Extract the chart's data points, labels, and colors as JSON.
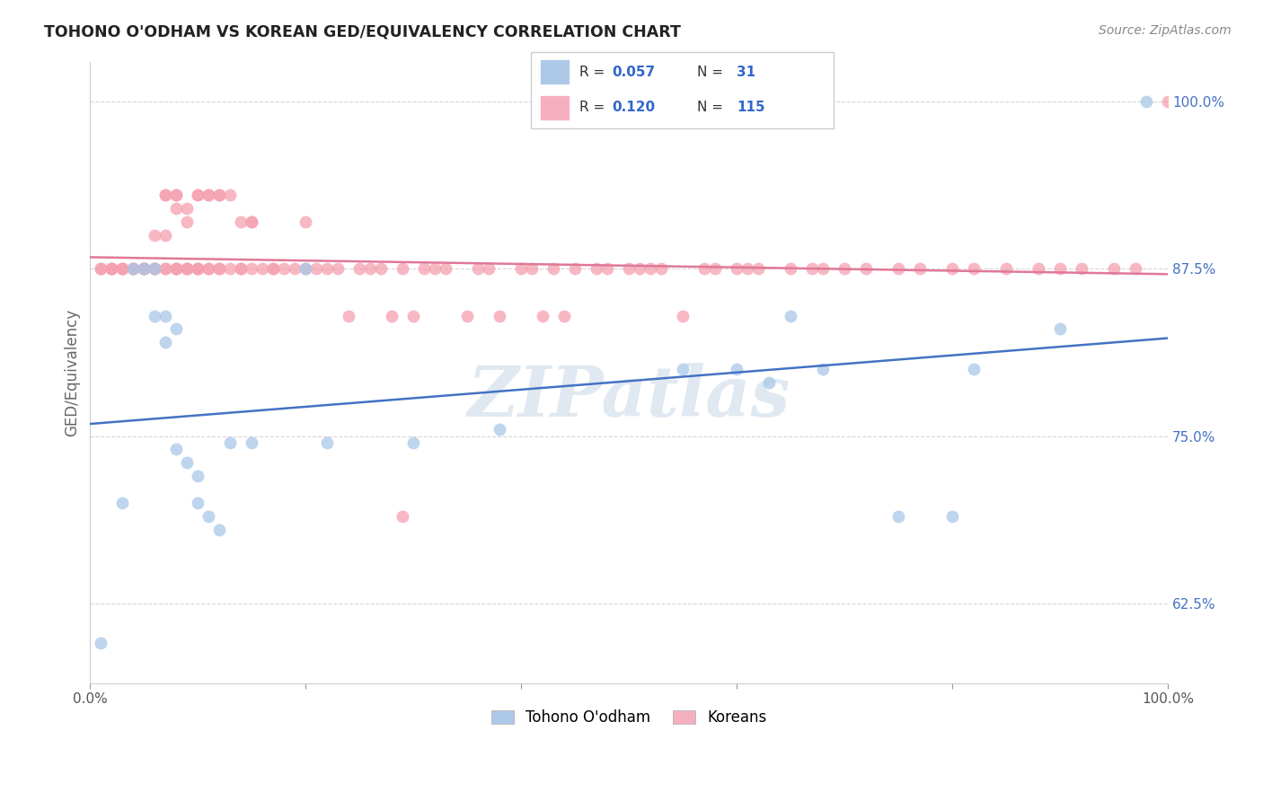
{
  "title": "TOHONO O'ODHAM VS KOREAN GED/EQUIVALENCY CORRELATION CHART",
  "source": "Source: ZipAtlas.com",
  "ylabel": "GED/Equivalency",
  "xlim": [
    0.0,
    1.0
  ],
  "ylim": [
    0.565,
    1.03
  ],
  "yticks": [
    0.625,
    0.75,
    0.875,
    1.0
  ],
  "ytick_labels": [
    "62.5%",
    "75.0%",
    "87.5%",
    "100.0%"
  ],
  "blue_scatter_x": [
    0.01,
    0.03,
    0.04,
    0.05,
    0.06,
    0.06,
    0.07,
    0.07,
    0.08,
    0.08,
    0.09,
    0.1,
    0.1,
    0.11,
    0.12,
    0.13,
    0.15,
    0.2,
    0.22,
    0.3,
    0.38,
    0.55,
    0.6,
    0.63,
    0.65,
    0.68,
    0.75,
    0.8,
    0.82,
    0.9,
    0.98
  ],
  "blue_scatter_y": [
    0.595,
    0.7,
    0.875,
    0.875,
    0.875,
    0.84,
    0.84,
    0.82,
    0.83,
    0.74,
    0.73,
    0.72,
    0.7,
    0.69,
    0.68,
    0.745,
    0.745,
    0.875,
    0.745,
    0.745,
    0.755,
    0.8,
    0.8,
    0.79,
    0.84,
    0.8,
    0.69,
    0.69,
    0.8,
    0.83,
    1.0
  ],
  "pink_scatter_x": [
    0.01,
    0.01,
    0.02,
    0.02,
    0.02,
    0.03,
    0.03,
    0.03,
    0.04,
    0.04,
    0.04,
    0.05,
    0.05,
    0.05,
    0.05,
    0.06,
    0.06,
    0.06,
    0.06,
    0.07,
    0.07,
    0.07,
    0.07,
    0.07,
    0.08,
    0.08,
    0.08,
    0.08,
    0.08,
    0.08,
    0.09,
    0.09,
    0.09,
    0.09,
    0.09,
    0.1,
    0.1,
    0.1,
    0.1,
    0.1,
    0.11,
    0.11,
    0.11,
    0.11,
    0.12,
    0.12,
    0.12,
    0.12,
    0.13,
    0.13,
    0.14,
    0.14,
    0.14,
    0.15,
    0.15,
    0.15,
    0.16,
    0.17,
    0.17,
    0.18,
    0.19,
    0.2,
    0.2,
    0.21,
    0.22,
    0.23,
    0.24,
    0.25,
    0.26,
    0.27,
    0.28,
    0.29,
    0.3,
    0.31,
    0.32,
    0.33,
    0.35,
    0.36,
    0.37,
    0.38,
    0.4,
    0.41,
    0.42,
    0.43,
    0.44,
    0.45,
    0.47,
    0.48,
    0.5,
    0.51,
    0.52,
    0.53,
    0.55,
    0.57,
    0.58,
    0.6,
    0.61,
    0.62,
    0.65,
    0.67,
    0.68,
    0.7,
    0.72,
    0.75,
    0.77,
    0.8,
    0.82,
    0.85,
    0.88,
    0.9,
    0.92,
    0.95,
    0.97,
    1.0,
    0.29
  ],
  "pink_scatter_y": [
    0.875,
    0.875,
    0.875,
    0.875,
    0.875,
    0.875,
    0.875,
    0.875,
    0.875,
    0.875,
    0.875,
    0.875,
    0.875,
    0.875,
    0.875,
    0.875,
    0.9,
    0.875,
    0.875,
    0.9,
    0.875,
    0.93,
    0.93,
    0.875,
    0.93,
    0.93,
    0.875,
    0.875,
    0.92,
    0.875,
    0.92,
    0.91,
    0.875,
    0.875,
    0.875,
    0.875,
    0.93,
    0.93,
    0.875,
    0.875,
    0.93,
    0.93,
    0.875,
    0.875,
    0.875,
    0.93,
    0.93,
    0.875,
    0.875,
    0.93,
    0.875,
    0.91,
    0.875,
    0.91,
    0.91,
    0.875,
    0.875,
    0.875,
    0.875,
    0.875,
    0.875,
    0.91,
    0.875,
    0.875,
    0.875,
    0.875,
    0.84,
    0.875,
    0.875,
    0.875,
    0.84,
    0.875,
    0.84,
    0.875,
    0.875,
    0.875,
    0.84,
    0.875,
    0.875,
    0.84,
    0.875,
    0.875,
    0.84,
    0.875,
    0.84,
    0.875,
    0.875,
    0.875,
    0.875,
    0.875,
    0.875,
    0.875,
    0.84,
    0.875,
    0.875,
    0.875,
    0.875,
    0.875,
    0.875,
    0.875,
    0.875,
    0.875,
    0.875,
    0.875,
    0.875,
    0.875,
    0.875,
    0.875,
    0.875,
    0.875,
    0.875,
    0.875,
    0.875,
    1.0,
    0.69
  ],
  "blue_color": "#a8c8e8",
  "pink_color": "#f5a0b0",
  "blue_line_color": "#4472c4",
  "pink_line_color": "#e07898",
  "scatter_alpha": 0.75,
  "scatter_size": 100,
  "watermark": "ZIPatlas",
  "background_color": "#ffffff",
  "grid_color": "#cccccc",
  "grid_linestyle": "--",
  "grid_alpha": 0.8,
  "blue_R": "0.057",
  "blue_N": "31",
  "pink_R": "0.120",
  "pink_N": "115",
  "legend_blue_patch": "#aec8e8",
  "legend_pink_patch": "#f5b0c0",
  "legend_R_color": "#3366cc",
  "legend_N_color": "#3366cc"
}
